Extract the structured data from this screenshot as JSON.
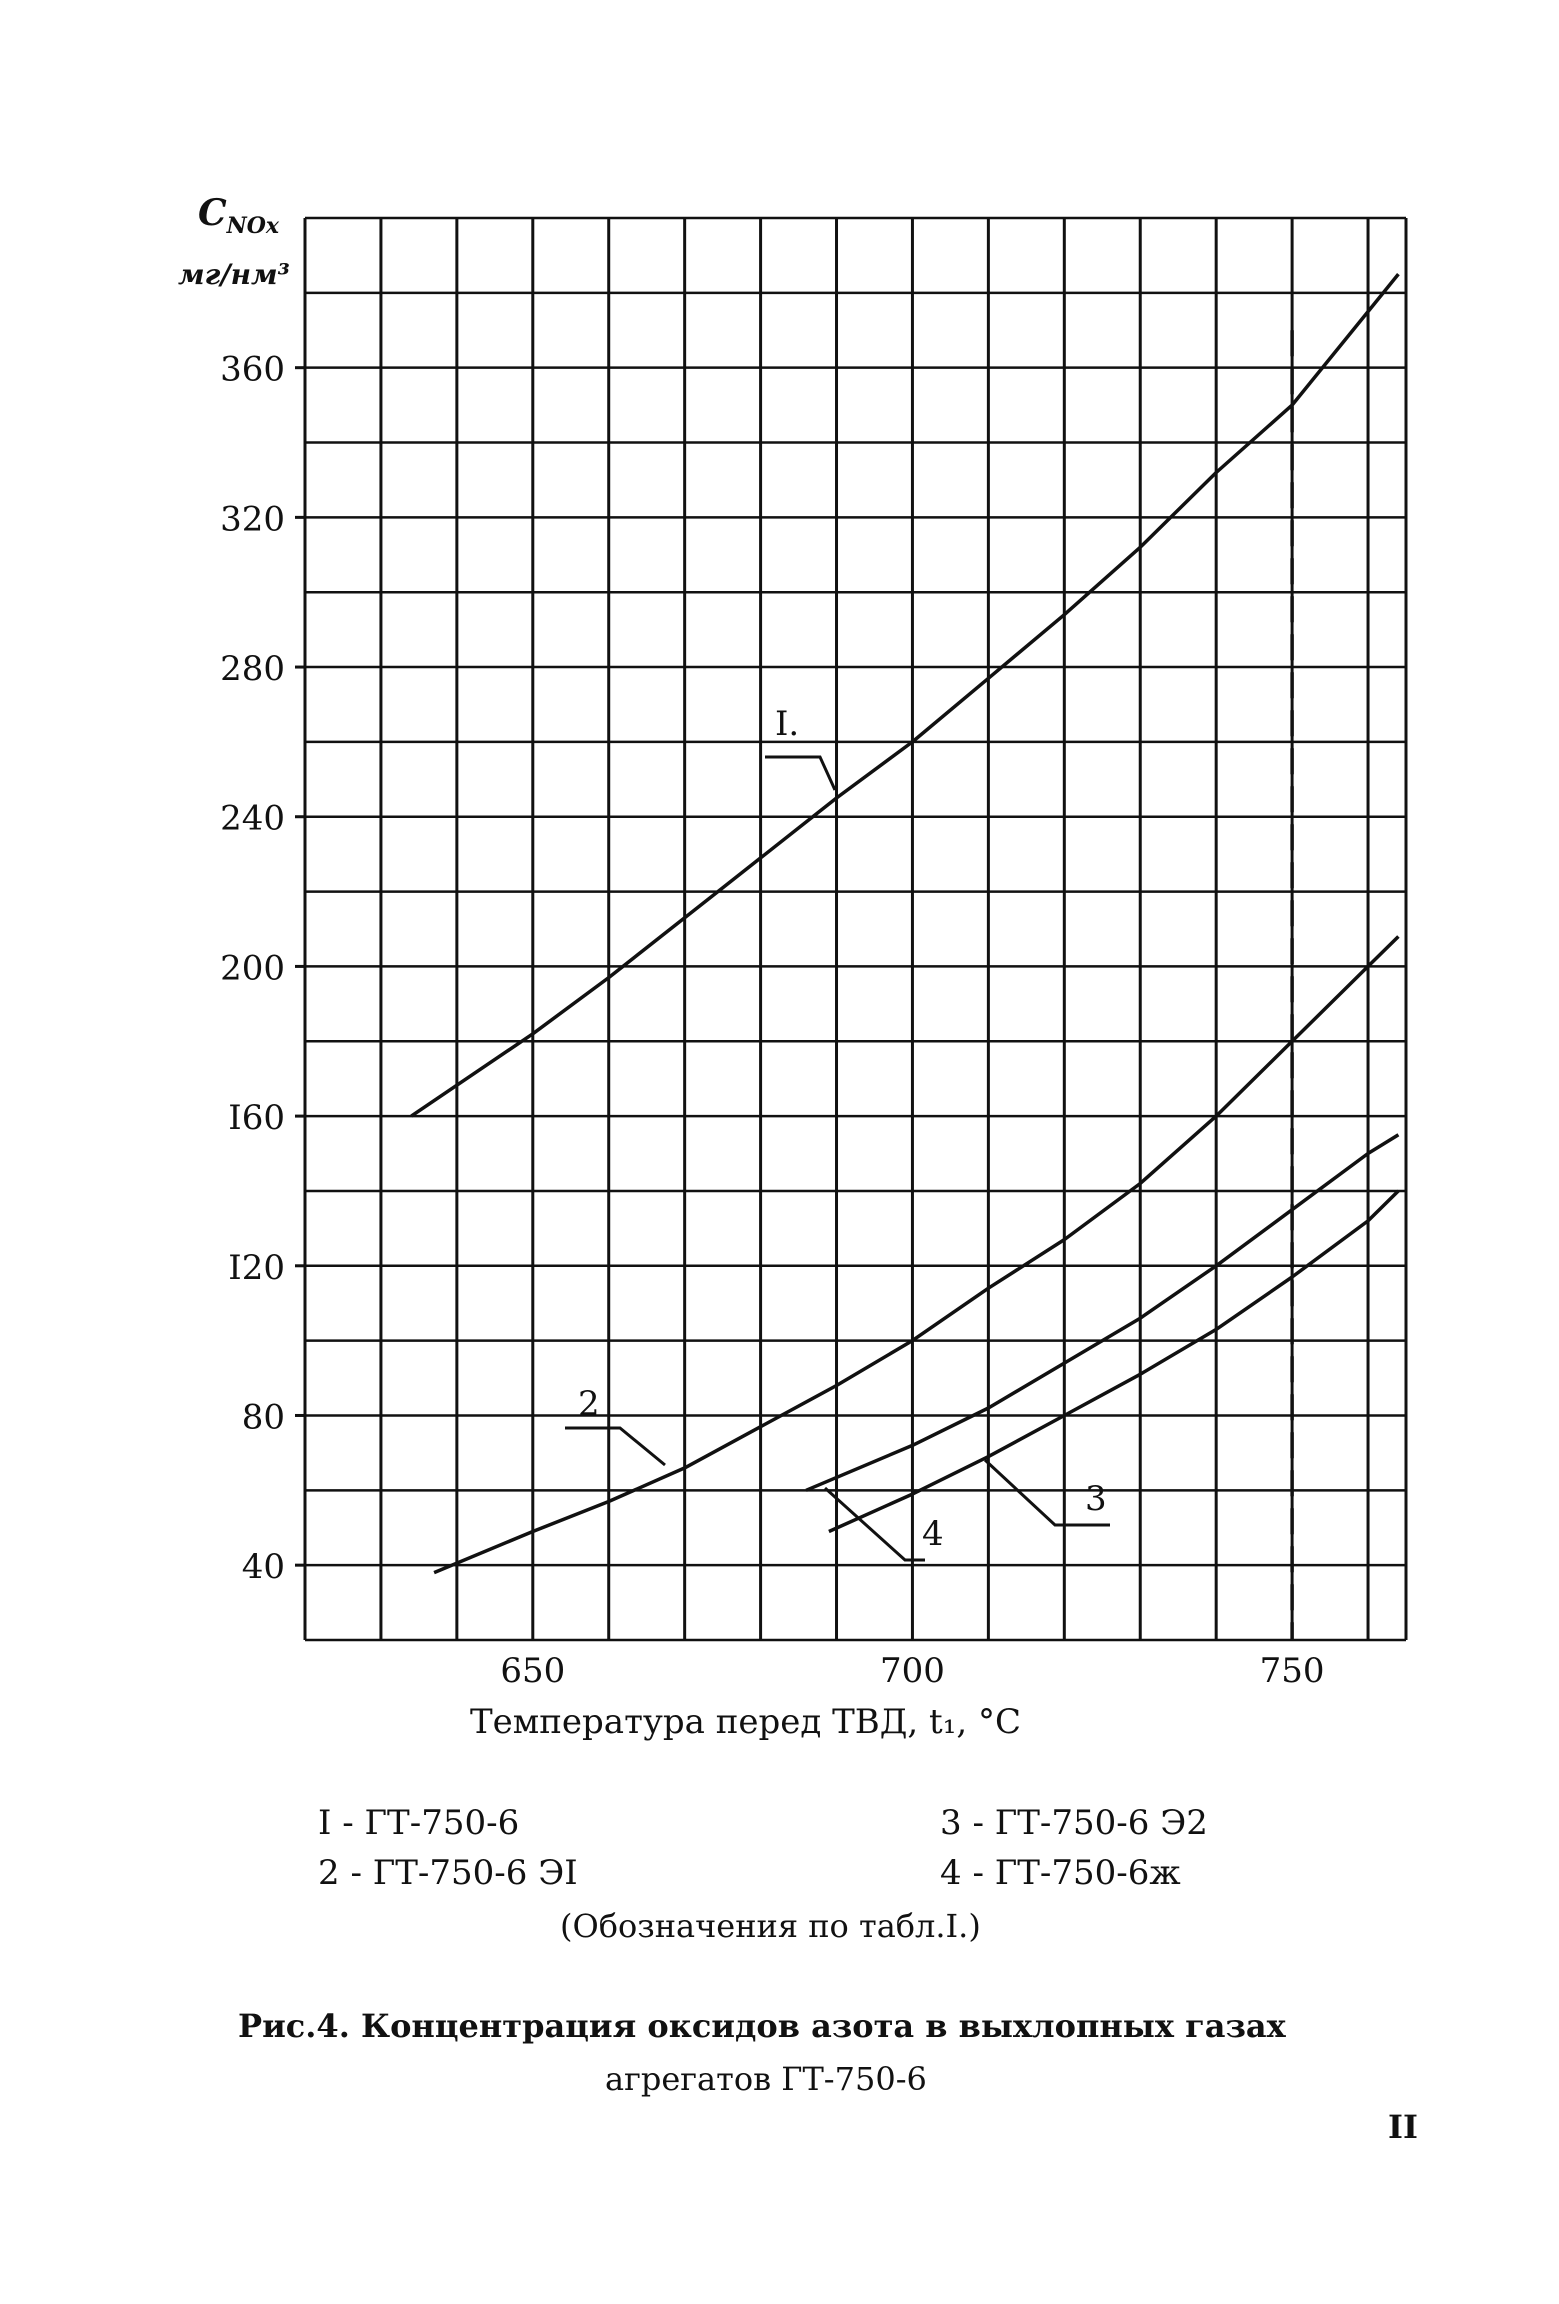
{
  "chart_data": {
    "type": "line",
    "ylabel": "C_NOx, мг/нм³",
    "ylabel_main": "C",
    "ylabel_sub": "NOx",
    "ylabel_unit": "мг/нм³",
    "xlabel": "Температура перед ТВД, t₁, °С",
    "xlim": [
      620,
      765
    ],
    "ylim": [
      20,
      400
    ],
    "x_ticks": [
      650,
      700,
      750
    ],
    "y_ticks": [
      40,
      80,
      120,
      160,
      200,
      240,
      280,
      320,
      360
    ],
    "y_tick_labels": [
      "40",
      "80",
      "I20",
      "I60",
      "200",
      "240",
      "280",
      "320",
      "360"
    ],
    "grid": true,
    "series": [
      {
        "name": "I",
        "x": [
          634,
          650,
          660,
          670,
          680,
          690,
          700,
          710,
          720,
          730,
          740,
          750,
          760,
          764
        ],
        "y": [
          160,
          182,
          197,
          213,
          229,
          245,
          260,
          277,
          294,
          312,
          332,
          350,
          375,
          385
        ]
      },
      {
        "name": "2",
        "x": [
          637,
          650,
          660,
          670,
          680,
          690,
          700,
          710,
          720,
          730,
          740,
          750,
          760,
          764
        ],
        "y": [
          38,
          49,
          57,
          66,
          77,
          88,
          100,
          114,
          127,
          142,
          160,
          180,
          200,
          208
        ]
      },
      {
        "name": "3",
        "x": [
          686,
          700,
          710,
          720,
          730,
          740,
          750,
          760,
          764
        ],
        "y": [
          60,
          72,
          82,
          94,
          106,
          120,
          135,
          150,
          155
        ]
      },
      {
        "name": "4",
        "x": [
          689,
          700,
          710,
          720,
          730,
          740,
          750,
          760,
          764
        ],
        "y": [
          49,
          59,
          69,
          80,
          91,
          103,
          117,
          132,
          140
        ]
      }
    ],
    "series_labels": [
      "I.",
      "2",
      "3",
      "4"
    ],
    "dashed_reference_x": 750
  },
  "legend": {
    "item1": "I  -  ГТ-750-6",
    "item2": "2  -  ГТ-750-6  ЭI",
    "item3": "3  -  ГТ-750-6  Э2",
    "item4": "4  -  ГТ-750-6ж"
  },
  "note": "(Обозначения по табл.I.)",
  "caption": {
    "line1": "Рис.4. Концентрация оксидов азота в выхлопных газах",
    "line2": "агрегатов ГТ-750-6"
  },
  "page_number": "II"
}
